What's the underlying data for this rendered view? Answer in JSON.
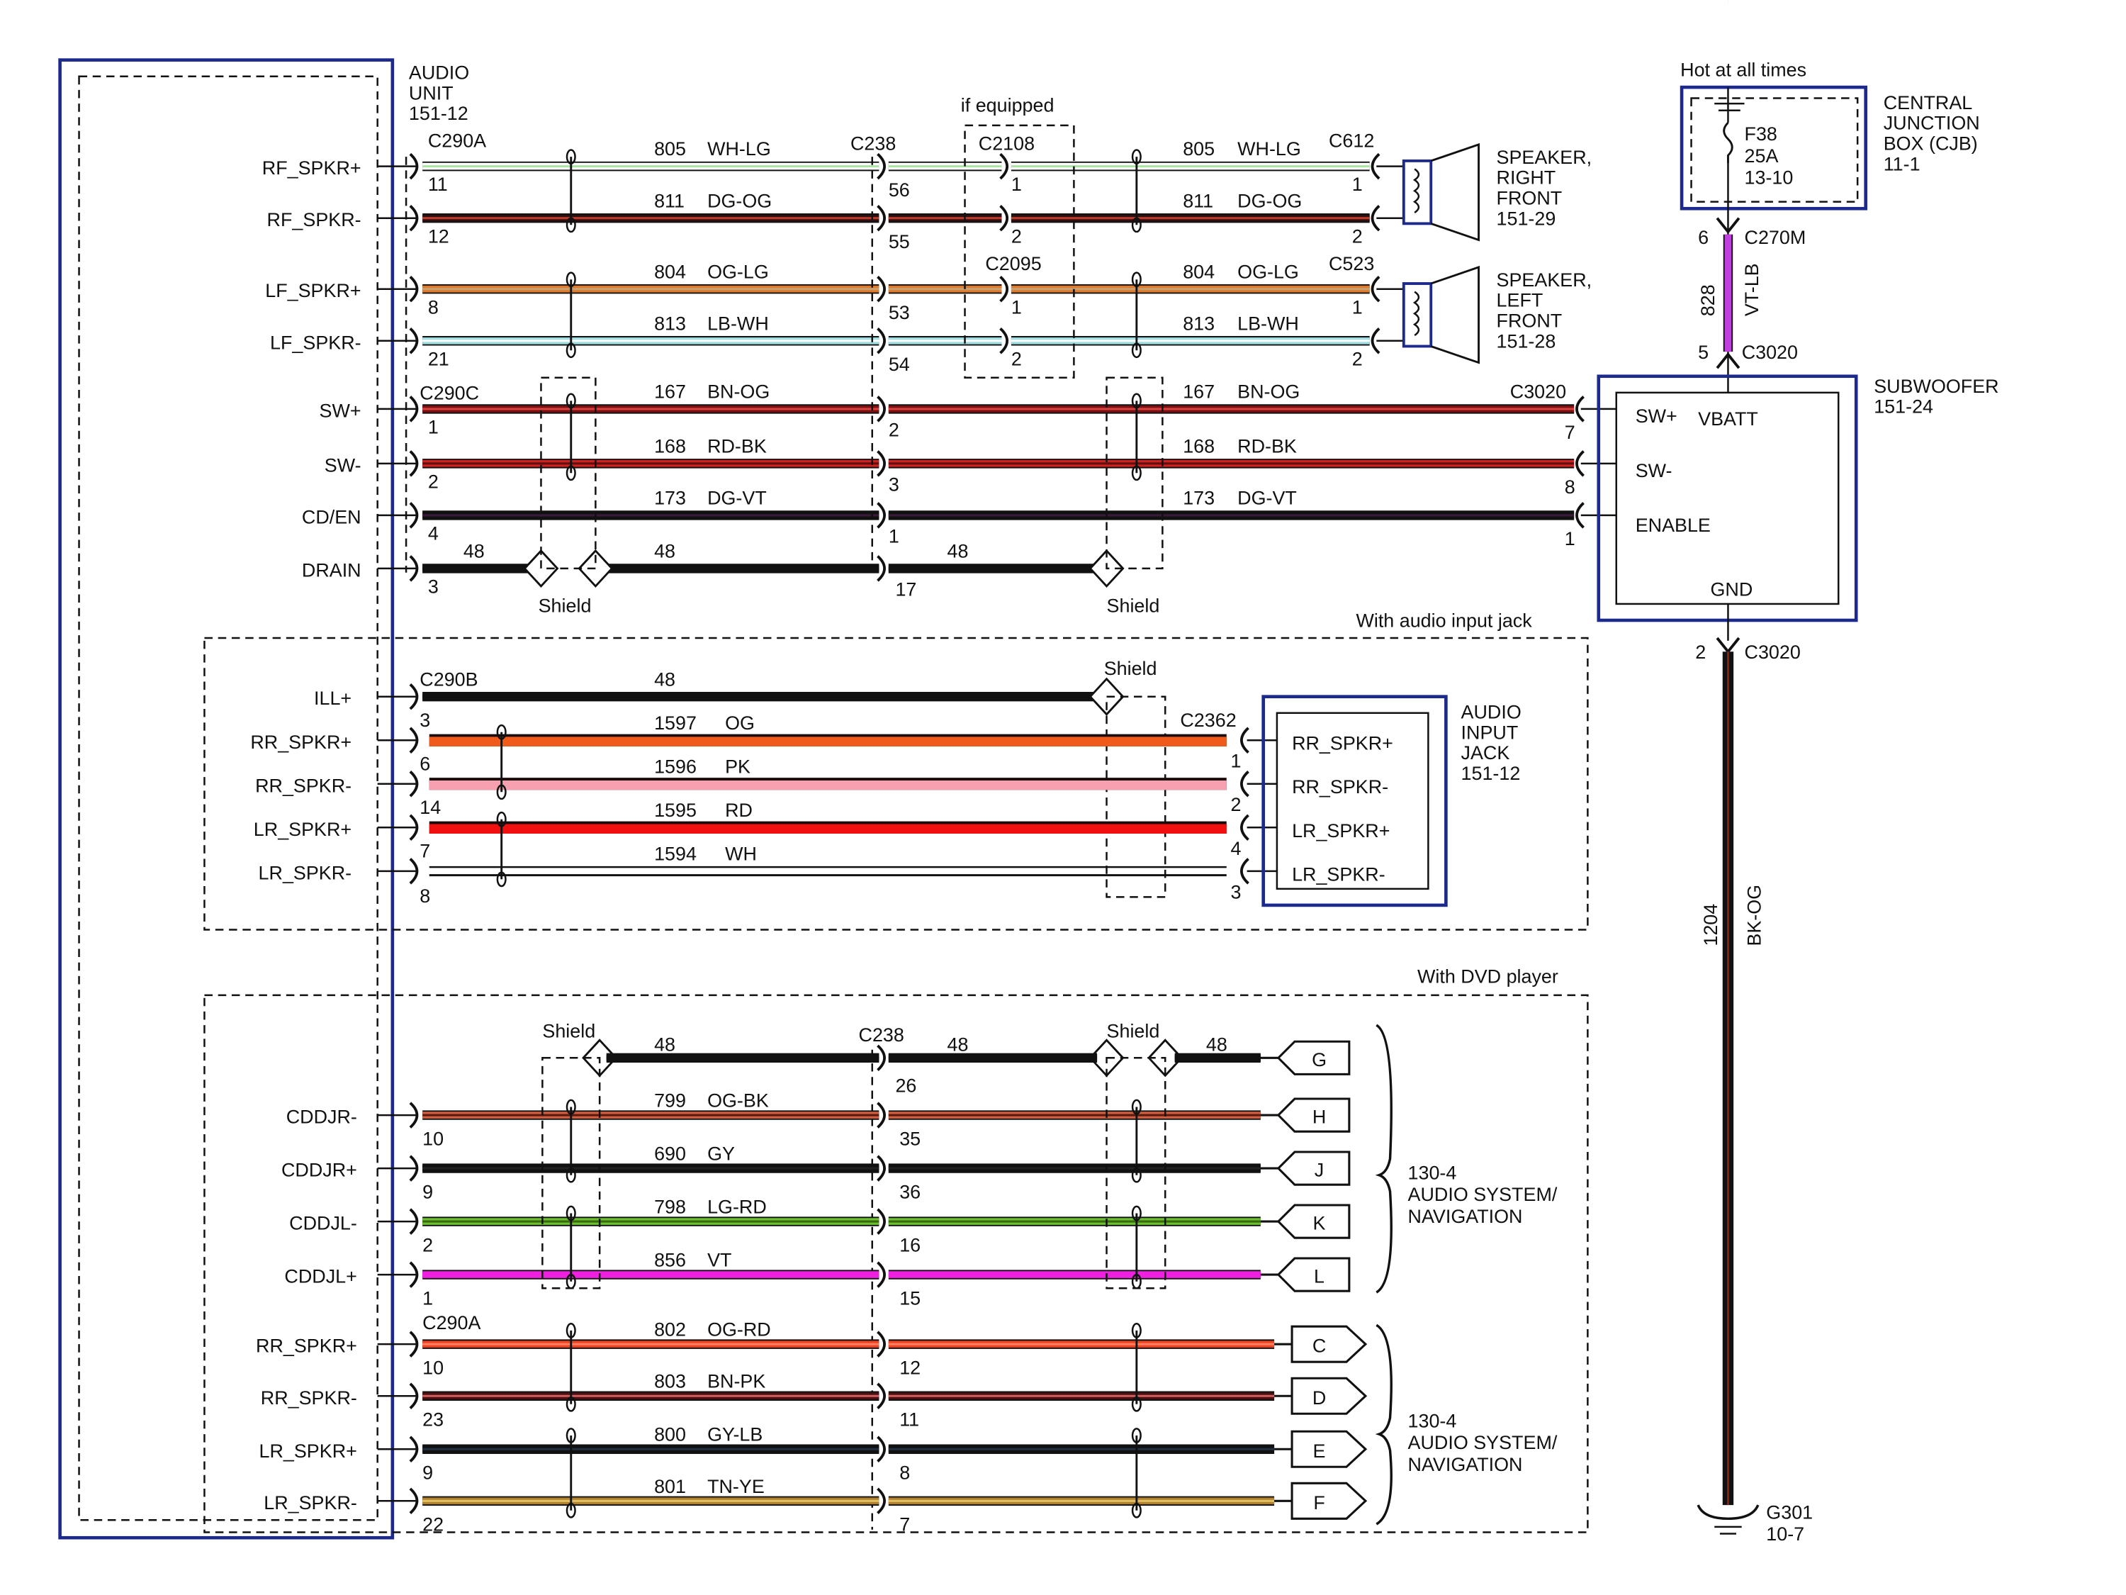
{
  "audio_unit": {
    "title": [
      "AUDIO",
      "UNIT",
      "151-12"
    ]
  },
  "wire_colors": {
    "WH-LG": [
      "#ffffff",
      "#a8e6a0"
    ],
    "DG-OG": [
      "#2a1010",
      "#c0392b"
    ],
    "OG-LG": [
      "#e07a2a",
      "#c8a070"
    ],
    "LB-WH": [
      "#9fdde0",
      "#ffffff"
    ],
    "BN-OG": [
      "#7a1010",
      "#d84040"
    ],
    "RD-BK": [
      "#d02020",
      "#601010"
    ],
    "DG-VT": [
      "#111111",
      "#3a1a3a"
    ],
    "48": [
      "#111111",
      "#111111"
    ],
    "OG": [
      "#f05a1a",
      "#f05a1a"
    ],
    "PK": [
      "#f7a0b0",
      "#f7a0b0"
    ],
    "RD": [
      "#f01010",
      "#f01010"
    ],
    "WH": [
      "#ffffff",
      "#ffffff"
    ],
    "OG-BK": [
      "#d06040",
      "#5a1a10"
    ],
    "GY": [
      "#111111",
      "#222222"
    ],
    "LG-RD": [
      "#6cc030",
      "#3a6a10"
    ],
    "VT": [
      "#f020e0",
      "#f020e0"
    ],
    "OG-RD": [
      "#f04020",
      "#ff8060"
    ],
    "BN-PK": [
      "#4a1010",
      "#d06060"
    ],
    "GY-LB": [
      "#111111",
      "#203040"
    ],
    "TN-YE": [
      "#b08030",
      "#e0c060"
    ],
    "VT-LB": [
      "#c040e0",
      "#c040e0"
    ],
    "BK-OG": [
      "#111111",
      "#8a2010"
    ]
  },
  "main": {
    "connectors": {
      "c290a": "C290A",
      "c238": "C238",
      "c2108": "C2108",
      "c2095": "C2095",
      "c612": "C612",
      "c523": "C523",
      "c290c": "C290C",
      "c3020": "C3020",
      "if_equipped": "if equipped"
    },
    "shield_label": "Shield",
    "wires": [
      {
        "label": "RF_SPKR+",
        "pin": "11",
        "circuit": "805",
        "color": "WH-LG",
        "c238_pin": "56",
        "mid_pin": "1",
        "end_pin": "1"
      },
      {
        "label": "RF_SPKR-",
        "pin": "12",
        "circuit": "811",
        "color": "DG-OG",
        "c238_pin": "55",
        "mid_pin": "2",
        "end_pin": "2"
      },
      {
        "label": "LF_SPKR+",
        "pin": "8",
        "circuit": "804",
        "color": "OG-LG",
        "c238_pin": "53",
        "mid_pin": "1",
        "end_pin": "1"
      },
      {
        "label": "LF_SPKR-",
        "pin": "21",
        "circuit": "813",
        "color": "LB-WH",
        "c238_pin": "54",
        "mid_pin": "2",
        "end_pin": "2"
      },
      {
        "label": "SW+",
        "pin": "1",
        "circuit": "167",
        "color": "BN-OG",
        "c238_pin": "2",
        "end_pin": "7"
      },
      {
        "label": "SW-",
        "pin": "2",
        "circuit": "168",
        "color": "RD-BK",
        "c238_pin": "3",
        "end_pin": "8"
      },
      {
        "label": "CD/EN",
        "pin": "4",
        "circuit": "173",
        "color": "DG-VT",
        "c238_pin": "1",
        "end_pin": "1"
      },
      {
        "label": "DRAIN",
        "pin": "3",
        "circuit": "48",
        "c238_pin": "17"
      }
    ],
    "speakers": [
      {
        "lines": [
          "SPEAKER,",
          "RIGHT",
          "FRONT",
          "151-29"
        ]
      },
      {
        "lines": [
          "SPEAKER,",
          "LEFT",
          "FRONT",
          "151-28"
        ]
      }
    ]
  },
  "audio_jack_section": {
    "title": "With audio input jack",
    "c290b": "C290B",
    "c2362": "C2362",
    "shield_label": "Shield",
    "ill": {
      "label": "ILL+",
      "circuit": "48"
    },
    "wires": [
      {
        "label": "RR_SPKR+",
        "pin": "3",
        "circuit": "1597",
        "color": "OG",
        "end_pin": "1",
        "jack_label": "RR_SPKR+"
      },
      {
        "label": "RR_SPKR-",
        "pin": "6",
        "circuit": "1596",
        "color": "PK",
        "end_pin": "2",
        "jack_label": "RR_SPKR-"
      },
      {
        "label": "LR_SPKR+",
        "pin": "14",
        "circuit": "1595",
        "color": "RD",
        "end_pin": "4",
        "jack_label": "LR_SPKR+"
      },
      {
        "label": "LR_SPKR-",
        "pin": "7",
        "circuit": "1594",
        "color": "WH",
        "end_pin": "3",
        "jack_label": "LR_SPKR-"
      }
    ],
    "extra_pin": "8",
    "jack_title": [
      "AUDIO",
      "INPUT",
      "JACK",
      "151-12"
    ]
  },
  "dvd_section": {
    "title": "With DVD player",
    "shield_label": "Shield",
    "c238": "C238",
    "c290a": "C290A",
    "drain": {
      "circuit": "48",
      "c238_pin": "26",
      "terminal": "G"
    },
    "group1": [
      {
        "label": "CDDJR-",
        "pin": "10",
        "circuit": "799",
        "color": "OG-BK",
        "c238_pin": "35",
        "terminal": "H"
      },
      {
        "label": "CDDJR+",
        "pin": "9",
        "circuit": "690",
        "color": "GY",
        "c238_pin": "36",
        "terminal": "J"
      },
      {
        "label": "CDDJL-",
        "pin": "2",
        "circuit": "798",
        "color": "LG-RD",
        "c238_pin": "16",
        "terminal": "K"
      },
      {
        "label": "CDDJL+",
        "pin": "1",
        "circuit": "856",
        "color": "VT",
        "c238_pin": "15",
        "terminal": "L"
      }
    ],
    "group2": [
      {
        "label": "RR_SPKR+",
        "pin": "10",
        "circuit": "802",
        "color": "OG-RD",
        "c238_pin": "12",
        "terminal": "C"
      },
      {
        "label": "RR_SPKR-",
        "pin": "23",
        "circuit": "803",
        "color": "BN-PK",
        "c238_pin": "11",
        "terminal": "D"
      },
      {
        "label": "LR_SPKR+",
        "pin": "9",
        "circuit": "800",
        "color": "GY-LB",
        "c238_pin": "8",
        "terminal": "E"
      },
      {
        "label": "LR_SPKR-",
        "pin": "22",
        "circuit": "801",
        "color": "TN-YE",
        "c238_pin": "7",
        "terminal": "F"
      }
    ],
    "group_ref": [
      "130-4",
      "AUDIO SYSTEM/",
      "NAVIGATION"
    ]
  },
  "power": {
    "hot_label": "Hot at all times",
    "fuse": [
      "F38",
      "25A",
      "13-10"
    ],
    "cjb_title": [
      "CENTRAL",
      "JUNCTION",
      "BOX (CJB)",
      "11-1"
    ],
    "c270m": "C270M",
    "c270m_pin": "6",
    "circuit": "828",
    "color": "VT-LB",
    "c3020": "C3020",
    "c3020_pin": "5"
  },
  "subwoofer": {
    "title": [
      "SUBWOOFER",
      "151-24"
    ],
    "pins": {
      "swp": "SW+",
      "vbatt": "VBATT",
      "swn": "SW-",
      "enable": "ENABLE",
      "gnd": "GND"
    }
  },
  "ground": {
    "c3020": "C3020",
    "pin": "2",
    "circuit": "1204",
    "color": "BK-OG",
    "ground": [
      "G301",
      "10-7"
    ]
  }
}
